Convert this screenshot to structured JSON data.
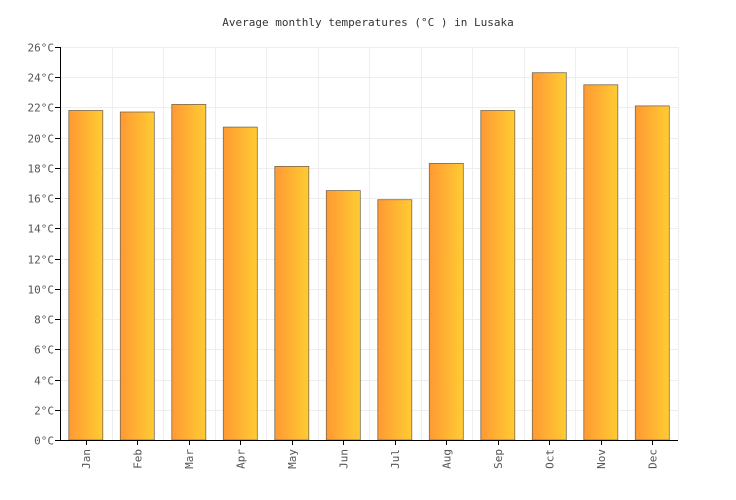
{
  "chart_data": {
    "type": "bar",
    "title": "Average monthly temperatures (°C ) in Lusaka",
    "categories": [
      "Jan",
      "Feb",
      "Mar",
      "Apr",
      "May",
      "Jun",
      "Jul",
      "Aug",
      "Sep",
      "Oct",
      "Nov",
      "Dec"
    ],
    "values": [
      21.8,
      21.7,
      22.2,
      20.7,
      18.1,
      16.5,
      15.9,
      18.3,
      21.8,
      24.3,
      23.5,
      22.1
    ],
    "yticks": [
      "0°C",
      "2°C",
      "4°C",
      "6°C",
      "8°C",
      "10°C",
      "12°C",
      "14°C",
      "16°C",
      "18°C",
      "20°C",
      "22°C",
      "24°C",
      "26°C"
    ],
    "ylim": [
      0,
      26
    ],
    "ystep": 2,
    "xlabel": "",
    "ylabel": "",
    "grid": true,
    "colors": {
      "bar_start": "#ff9933",
      "bar_end": "#ffcc33",
      "bar_stroke": "#7a6a50",
      "grid": "#eeeeee",
      "axis": "#000000"
    }
  }
}
